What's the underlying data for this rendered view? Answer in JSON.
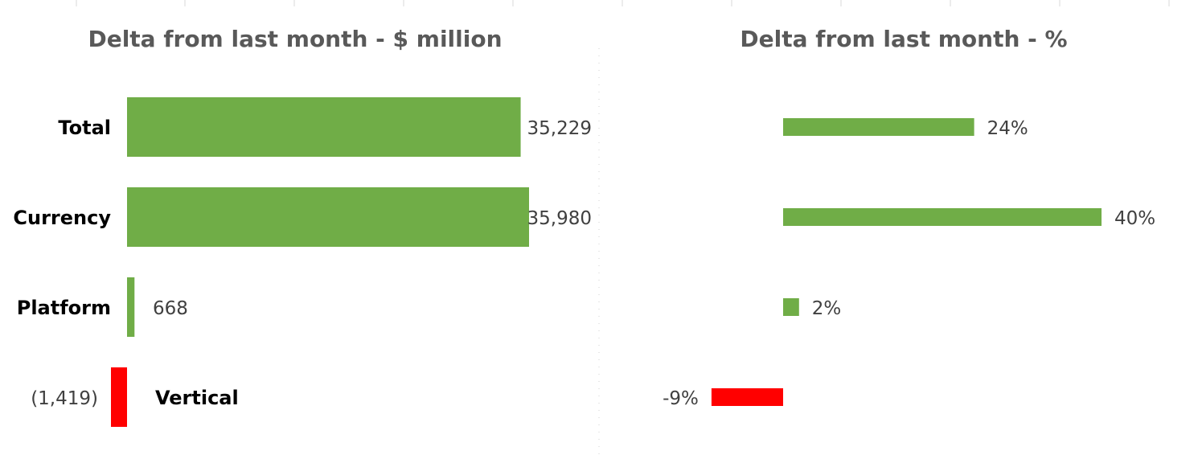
{
  "colors": {
    "positive": "#70ad47",
    "negative": "#ff0000",
    "title": "#595959",
    "label": "#404040"
  },
  "chart_data": [
    {
      "type": "bar",
      "orientation": "horizontal",
      "title": "Delta from last month - $ million",
      "categories": [
        "Total",
        "Currency",
        "Platform",
        "Vertical"
      ],
      "values": [
        35229,
        35980,
        668,
        -1419
      ],
      "data_labels": [
        "35,229",
        "35,980",
        "668",
        "(1,419)"
      ],
      "xlim": [
        -1500,
        36000
      ],
      "grid": false,
      "legend": "none"
    },
    {
      "type": "bar",
      "orientation": "horizontal",
      "title": "Delta from last month - %",
      "categories": [
        "Total",
        "Currency",
        "Platform",
        "Vertical"
      ],
      "values": [
        24,
        40,
        2,
        -9
      ],
      "data_labels": [
        "24%",
        "40%",
        "2%",
        "-9%"
      ],
      "xlim": [
        -10,
        45
      ],
      "grid": false,
      "legend": "none"
    }
  ]
}
